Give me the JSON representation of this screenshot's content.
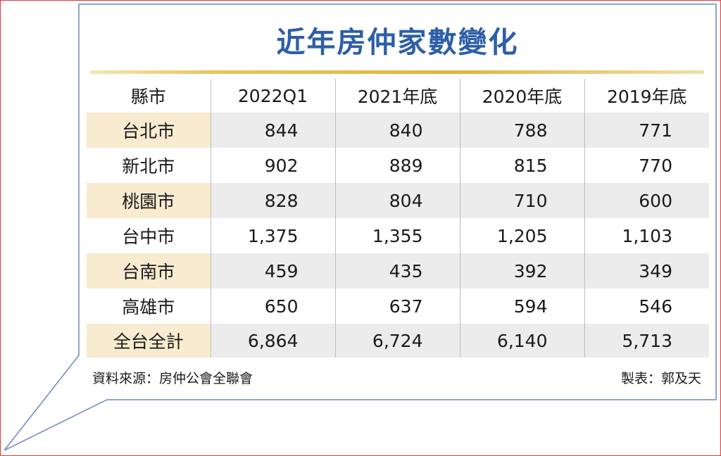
{
  "title": "近年房仲家數變化",
  "chart_data": {
    "type": "table",
    "title": "近年房仲家數變化",
    "columns": [
      "縣市",
      "2022Q1",
      "2021年底",
      "2020年底",
      "2019年底"
    ],
    "rows": [
      {
        "city": "台北市",
        "values": [
          "844",
          "840",
          "788",
          "771"
        ]
      },
      {
        "city": "新北市",
        "values": [
          "902",
          "889",
          "815",
          "770"
        ]
      },
      {
        "city": "桃園市",
        "values": [
          "828",
          "804",
          "710",
          "600"
        ]
      },
      {
        "city": "台中市",
        "values": [
          "1,375",
          "1,355",
          "1,205",
          "1,103"
        ]
      },
      {
        "city": "台南市",
        "values": [
          "459",
          "435",
          "392",
          "349"
        ]
      },
      {
        "city": "高雄市",
        "values": [
          "650",
          "637",
          "594",
          "546"
        ]
      },
      {
        "city": "全台全計",
        "values": [
          "6,864",
          "6,724",
          "6,140",
          "5,713"
        ]
      }
    ]
  },
  "footer": {
    "source": "資料來源：房仲公會全聯會",
    "author": "製表：郭及天"
  },
  "colors": {
    "title": "#2d5ea8",
    "row_highlight": "#ececec",
    "city_highlight": "#f8ebd0",
    "rule_gold": "#e0b53a",
    "bubble_border": "#6e86c2",
    "frame_border": "#e23b3b"
  }
}
